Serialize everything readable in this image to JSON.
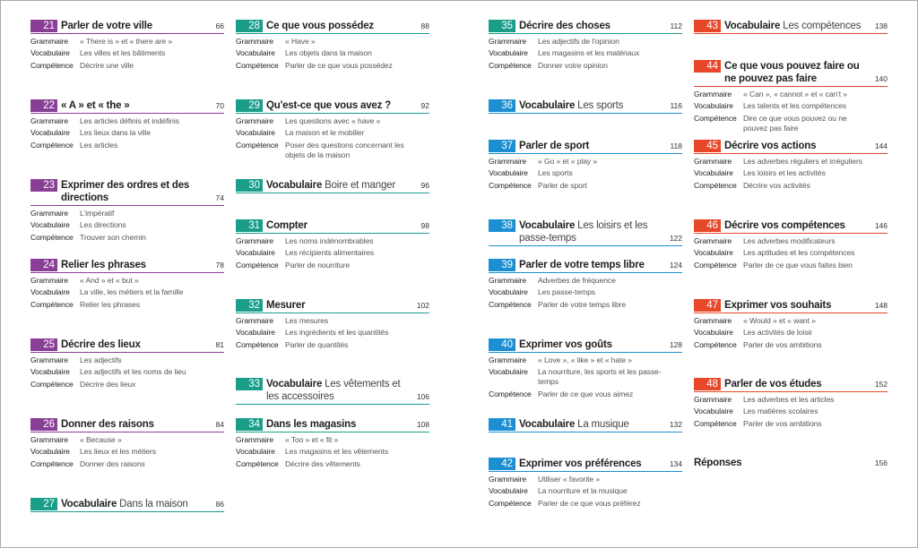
{
  "columns": [
    {
      "entries": [
        {
          "number": "21",
          "title": "Parler de votre ville",
          "page": "66",
          "color": "#8a3f96",
          "rows": [
            {
              "label": "Grammaire",
              "text": "« There is » et « there are »"
            },
            {
              "label": "Vocabulaire",
              "text": "Les villes et les bâtiments"
            },
            {
              "label": "Compétence",
              "text": "Décrire une ville"
            }
          ]
        },
        {
          "number": "22",
          "title": "« A » et « the »",
          "page": "70",
          "color": "#8a3f96",
          "rows": [
            {
              "label": "Grammaire",
              "text": "Les articles définis et indéfinis"
            },
            {
              "label": "Vocabulaire",
              "text": "Les lieux dans la ville"
            },
            {
              "label": "Compétence",
              "text": "Les articles"
            }
          ]
        },
        {
          "number": "23",
          "title": "Exprimer des ordres et des directions",
          "page": "74",
          "color": "#8a3f96",
          "rows": [
            {
              "label": "Grammaire",
              "text": "L'impératif"
            },
            {
              "label": "Vocabulaire",
              "text": "Les directions"
            },
            {
              "label": "Compétence",
              "text": "Trouver son chemin"
            }
          ]
        },
        {
          "number": "24",
          "title": "Relier les phrases",
          "page": "78",
          "color": "#8a3f96",
          "rows": [
            {
              "label": "Grammaire",
              "text": "« And » et « but »"
            },
            {
              "label": "Vocabulaire",
              "text": "La ville, les métiers et la famille"
            },
            {
              "label": "Compétence",
              "text": "Relier les phrases"
            }
          ]
        },
        {
          "number": "25",
          "title": "Décrire des lieux",
          "page": "81",
          "color": "#8a3f96",
          "rows": [
            {
              "label": "Grammaire",
              "text": "Les adjectifs"
            },
            {
              "label": "Vocabulaire",
              "text": "Les adjectifs et les noms de lieu"
            },
            {
              "label": "Compétence",
              "text": "Décrire des lieux"
            }
          ]
        },
        {
          "number": "26",
          "title": "Donner des raisons",
          "page": "84",
          "color": "#8a3f96",
          "rows": [
            {
              "label": "Grammaire",
              "text": "« Because »"
            },
            {
              "label": "Vocabulaire",
              "text": "Les lieux et les métiers"
            },
            {
              "label": "Compétence",
              "text": "Donner des raisons"
            }
          ]
        },
        {
          "number": "27",
          "title": "Vocabulaire",
          "subtitle": "Dans la maison",
          "page": "86",
          "color": "#1a9e8a",
          "rows": []
        }
      ]
    },
    {
      "entries": [
        {
          "number": "28",
          "title": "Ce que vous possédez",
          "page": "88",
          "color": "#1a9e8a",
          "rows": [
            {
              "label": "Grammaire",
              "text": "« Have »"
            },
            {
              "label": "Vocabulaire",
              "text": "Les objets dans la maison"
            },
            {
              "label": "Compétence",
              "text": "Parler de ce que vous possédez"
            }
          ]
        },
        {
          "number": "29",
          "title": "Qu'est-ce que vous avez ?",
          "page": "92",
          "color": "#1a9e8a",
          "rows": [
            {
              "label": "Grammaire",
              "text": "Les questions avec « have »"
            },
            {
              "label": "Vocabulaire",
              "text": "La maison et le mobilier"
            },
            {
              "label": "Compétence",
              "text": "Poser des questions concernant les objets de la maison"
            }
          ]
        },
        {
          "number": "30",
          "title": "Vocabulaire",
          "subtitle": "Boire et manger",
          "page": "96",
          "color": "#1a9e8a",
          "rows": []
        },
        {
          "number": "31",
          "title": "Compter",
          "page": "98",
          "color": "#1a9e8a",
          "rows": [
            {
              "label": "Grammaire",
              "text": "Les noms indénombrables"
            },
            {
              "label": "Vocabulaire",
              "text": "Les récipients alimentaires"
            },
            {
              "label": "Compétence",
              "text": "Parler de nourriture"
            }
          ]
        },
        {
          "number": "32",
          "title": "Mesurer",
          "page": "102",
          "color": "#1a9e8a",
          "rows": [
            {
              "label": "Grammaire",
              "text": "Les mesures"
            },
            {
              "label": "Vocabulaire",
              "text": "Les ingrédients et les quantités"
            },
            {
              "label": "Compétence",
              "text": "Parler de quantités"
            }
          ]
        },
        {
          "number": "33",
          "title": "Vocabulaire",
          "subtitle": "Les vêtements et les accessoires",
          "page": "106",
          "color": "#1a9e8a",
          "rows": []
        },
        {
          "number": "34",
          "title": "Dans les magasins",
          "page": "108",
          "color": "#1a9e8a",
          "rows": [
            {
              "label": "Grammaire",
              "text": "« Too » et « fit »"
            },
            {
              "label": "Vocabulaire",
              "text": "Les magasins et les vêtements"
            },
            {
              "label": "Compétence",
              "text": "Décrire des vêtements"
            }
          ]
        }
      ]
    },
    {
      "entries": [
        {
          "number": "35",
          "title": "Décrire des choses",
          "page": "112",
          "color": "#1a9e8a",
          "rows": [
            {
              "label": "Grammaire",
              "text": "Les adjectifs de l'opinion"
            },
            {
              "label": "Vocabulaire",
              "text": "Les magasins et les matériaux"
            },
            {
              "label": "Compétence",
              "text": "Donner votre opinion"
            }
          ]
        },
        {
          "number": "36",
          "title": "Vocabulaire",
          "subtitle": "Les sports",
          "page": "116",
          "color": "#1b8fd1",
          "rows": []
        },
        {
          "number": "37",
          "title": "Parler de sport",
          "page": "118",
          "color": "#1b8fd1",
          "rows": [
            {
              "label": "Grammaire",
              "text": "« Go » et « play »"
            },
            {
              "label": "Vocabulaire",
              "text": "Les sports"
            },
            {
              "label": "Compétence",
              "text": "Parler de sport"
            }
          ]
        },
        {
          "number": "38",
          "title": "Vocabulaire",
          "subtitle": "Les loisirs et les passe-temps",
          "page": "122",
          "color": "#1b8fd1",
          "rows": []
        },
        {
          "number": "39",
          "title": "Parler de votre temps libre",
          "page": "124",
          "color": "#1b8fd1",
          "rows": [
            {
              "label": "Grammaire",
              "text": "Adverbes de fréquence"
            },
            {
              "label": "Vocabulaire",
              "text": "Les passe-temps"
            },
            {
              "label": "Compétence",
              "text": "Parler de votre temps libre"
            }
          ]
        },
        {
          "number": "40",
          "title": "Exprimer vos goûts",
          "page": "128",
          "color": "#1b8fd1",
          "rows": [
            {
              "label": "Grammaire",
              "text": "« Love », « like » et « hate »"
            },
            {
              "label": "Vocabulaire",
              "text": "La nourriture, les sports et les passe-temps"
            },
            {
              "label": "Compétence",
              "text": "Parler de ce que vous aimez"
            }
          ]
        },
        {
          "number": "41",
          "title": "Vocabulaire",
          "subtitle": "La musique",
          "page": "132",
          "color": "#1b8fd1",
          "rows": []
        },
        {
          "number": "42",
          "title": "Exprimer vos préférences",
          "page": "134",
          "color": "#1b8fd1",
          "rows": [
            {
              "label": "Grammaire",
              "text": "Utiliser « favorite »"
            },
            {
              "label": "Vocabulaire",
              "text": "La nourriture et la musique"
            },
            {
              "label": "Compétence",
              "text": "Parler de ce que vous préférez"
            }
          ]
        }
      ]
    },
    {
      "entries": [
        {
          "number": "43",
          "title": "Vocabulaire",
          "subtitle": "Les compétences",
          "page": "138",
          "color": "#e8472a",
          "rows": []
        },
        {
          "number": "44",
          "title": "Ce que vous pouvez faire ou ne pouvez pas faire",
          "page": "140",
          "color": "#e8472a",
          "rows": [
            {
              "label": "Grammaire",
              "text": "« Can », « cannot » et « can't »"
            },
            {
              "label": "Vocabulaire",
              "text": "Les talents et les compétences"
            },
            {
              "label": "Compétence",
              "text": "Dire ce que vous pouvez ou ne pouvez pas faire"
            }
          ]
        },
        {
          "number": "45",
          "title": "Décrire vos actions",
          "page": "144",
          "color": "#e8472a",
          "rows": [
            {
              "label": "Grammaire",
              "text": "Les adverbes réguliers et irréguliers"
            },
            {
              "label": "Vocabulaire",
              "text": "Les loisirs et les activités"
            },
            {
              "label": "Compétence",
              "text": "Décrire vos activités"
            }
          ]
        },
        {
          "number": "46",
          "title": "Décrire vos compétences",
          "page": "146",
          "color": "#e8472a",
          "rows": [
            {
              "label": "Grammaire",
              "text": "Les adverbes modificateurs"
            },
            {
              "label": "Vocabulaire",
              "text": "Les aptitudes et les compétences"
            },
            {
              "label": "Compétence",
              "text": "Parler de ce que vous faites bien"
            }
          ]
        },
        {
          "number": "47",
          "title": "Exprimer vos souhaits",
          "page": "148",
          "color": "#e8472a",
          "rows": [
            {
              "label": "Grammaire",
              "text": "« Would » et « want »"
            },
            {
              "label": "Vocabulaire",
              "text": "Les activités de loisir"
            },
            {
              "label": "Compétence",
              "text": "Parler de vos ambitions"
            }
          ]
        },
        {
          "number": "48",
          "title": "Parler de vos études",
          "page": "152",
          "color": "#e8472a",
          "rows": [
            {
              "label": "Grammaire",
              "text": "Les adverbes et les articles"
            },
            {
              "label": "Vocabulaire",
              "text": "Les matières scolaires"
            },
            {
              "label": "Compétence",
              "text": "Parler de vos ambitions"
            }
          ]
        },
        {
          "title": "Réponses",
          "page": "156",
          "rows": []
        }
      ]
    }
  ]
}
